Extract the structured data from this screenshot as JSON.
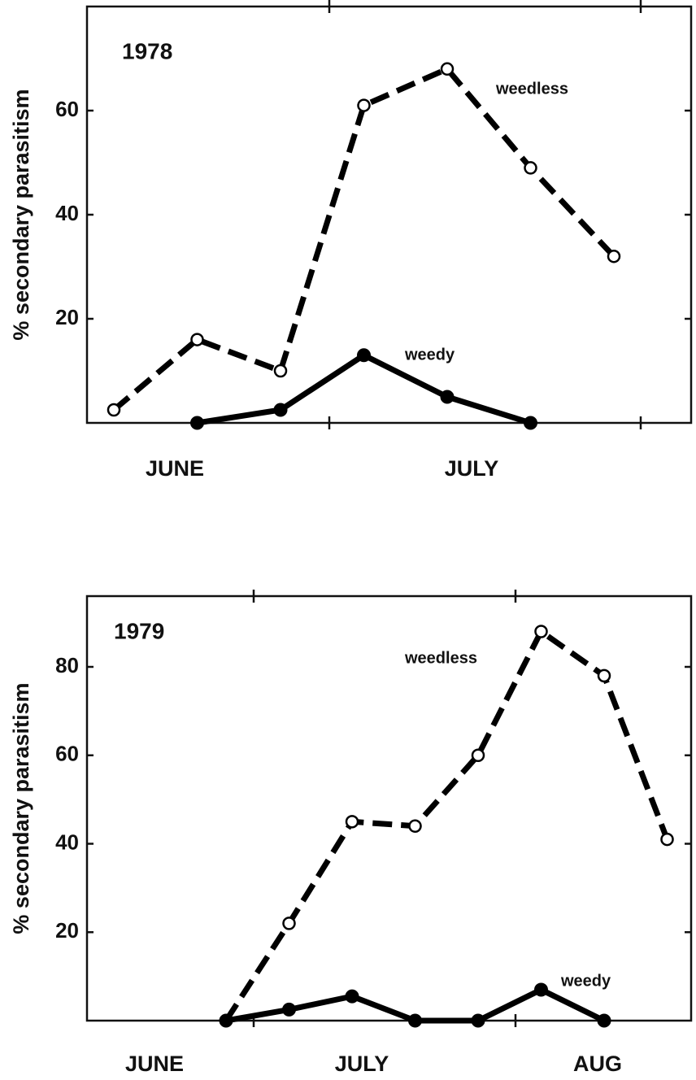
{
  "chart_data": [
    {
      "type": "line",
      "title": "1978",
      "ylabel": "% secondary parasitism",
      "categories": [
        null,
        null,
        null,
        null,
        null,
        null,
        null
      ],
      "month_labels": [
        "JUNE",
        "JULY"
      ],
      "series": [
        {
          "name": "weedless",
          "color": "#000000",
          "line_style": "dashed",
          "marker": "open",
          "values": [
            2.5,
            16,
            10,
            61,
            68,
            49,
            32
          ]
        },
        {
          "name": "weedy",
          "color": "#000000",
          "line_style": "solid",
          "marker": "filled",
          "values": [
            null,
            0,
            2.5,
            13,
            5,
            0,
            null
          ]
        }
      ],
      "ylim": [
        0,
        80
      ],
      "yticks": [
        20,
        40,
        60
      ],
      "grid": false
    },
    {
      "type": "line",
      "title": "1979",
      "ylabel": "% secondary parasitism",
      "categories": [
        null,
        null,
        null,
        null,
        null,
        null,
        null,
        null
      ],
      "month_labels": [
        "JUNE",
        "JULY",
        "AUG"
      ],
      "series": [
        {
          "name": "weedless",
          "color": "#000000",
          "line_style": "dashed",
          "marker": "open",
          "values": [
            0,
            22,
            45,
            44,
            60,
            88,
            78,
            41
          ]
        },
        {
          "name": "weedy",
          "color": "#000000",
          "line_style": "solid",
          "marker": "filled",
          "values": [
            0,
            2.5,
            5.5,
            0,
            0,
            7,
            0,
            null
          ]
        }
      ],
      "ylim": [
        0,
        96
      ],
      "yticks": [
        20,
        40,
        60,
        80
      ],
      "grid": false
    }
  ]
}
